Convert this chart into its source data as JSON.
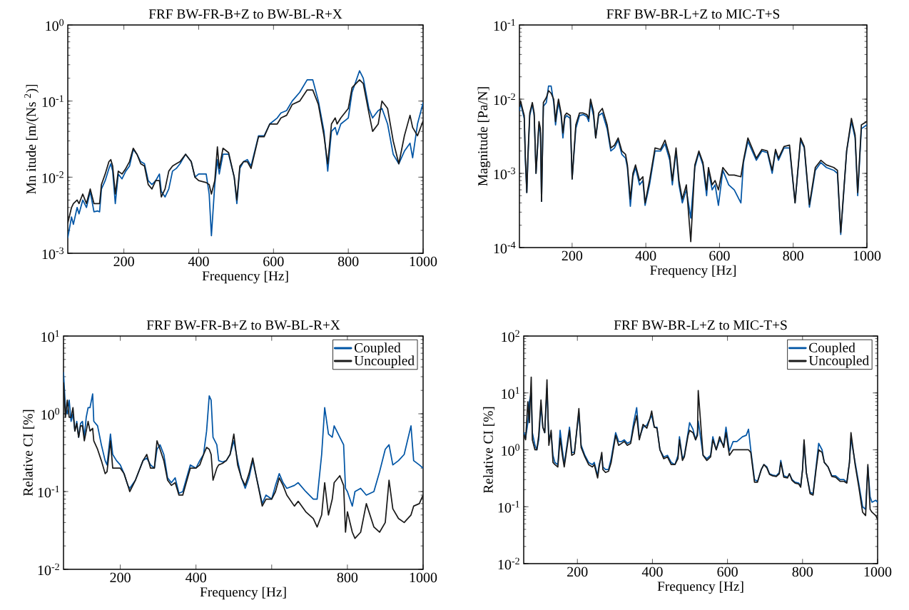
{
  "chart_data": [
    {
      "type": "line",
      "title": "FRF BW-FR-B+Z to BW-BL-R+X",
      "xlabel": "Frequency [Hz]",
      "ylabel": "Mn  itude [m/(Ns $^{2}$)]",
      "log": "y",
      "xlim": [
        50,
        1000
      ],
      "ylim": [
        0.001,
        1
      ],
      "xticks": [
        200,
        400,
        600,
        800,
        1000
      ],
      "yticks": [
        {
          "value": 0.001,
          "label": "10$^{-3}$"
        },
        {
          "value": 0.01,
          "label": "10$^{-2}$"
        },
        {
          "value": 0.1,
          "label": "10$^{-1}$"
        },
        {
          "value": 1,
          "label": "10$^{0}$"
        }
      ],
      "series": [
        {
          "color": "#0055a5",
          "x": [
            50,
            60,
            65,
            75,
            80,
            90,
            100,
            110,
            120,
            130,
            135,
            140,
            150,
            160,
            165,
            170,
            177,
            185,
            195,
            205,
            215,
            225,
            235,
            245,
            255,
            265,
            275,
            285,
            295,
            300,
            310,
            320,
            330,
            340,
            350,
            365,
            380,
            390,
            400,
            420,
            428,
            434,
            443,
            450,
            455,
            465,
            480,
            495,
            502,
            510,
            520,
            530,
            540,
            560,
            575,
            590,
            610,
            620,
            635,
            650,
            670,
            690,
            705,
            720,
            735,
            745,
            755,
            765,
            770,
            780,
            800,
            810,
            830,
            840,
            855,
            865,
            880,
            890,
            905,
            920,
            935,
            950,
            965,
            972,
            985,
            1000
          ],
          "values": [
            0.0016,
            0.003,
            0.0024,
            0.004,
            0.0033,
            0.005,
            0.004,
            0.0065,
            0.0035,
            0.0036,
            0.0035,
            0.007,
            0.009,
            0.013,
            0.015,
            0.012,
            0.0045,
            0.011,
            0.0095,
            0.012,
            0.014,
            0.023,
            0.02,
            0.016,
            0.015,
            0.009,
            0.008,
            0.009,
            0.011,
            0.0065,
            0.0055,
            0.007,
            0.012,
            0.013,
            0.015,
            0.02,
            0.016,
            0.01,
            0.011,
            0.011,
            0.006,
            0.0017,
            0.008,
            0.017,
            0.011,
            0.02,
            0.02,
            0.01,
            0.0045,
            0.013,
            0.016,
            0.017,
            0.014,
            0.035,
            0.035,
            0.05,
            0.06,
            0.07,
            0.075,
            0.1,
            0.13,
            0.19,
            0.19,
            0.1,
            0.04,
            0.012,
            0.04,
            0.045,
            0.036,
            0.05,
            0.06,
            0.13,
            0.25,
            0.2,
            0.08,
            0.06,
            0.075,
            0.08,
            0.05,
            0.02,
            0.015,
            0.022,
            0.028,
            0.018,
            0.05,
            0.095
          ]
        },
        {
          "color": "#1a1a1a",
          "x": [
            50,
            60,
            65,
            75,
            80,
            90,
            100,
            110,
            120,
            130,
            135,
            140,
            150,
            160,
            165,
            170,
            177,
            185,
            195,
            205,
            215,
            225,
            235,
            245,
            255,
            265,
            275,
            285,
            295,
            300,
            310,
            320,
            330,
            340,
            350,
            365,
            380,
            390,
            400,
            420,
            428,
            434,
            443,
            450,
            455,
            465,
            480,
            495,
            502,
            510,
            520,
            530,
            540,
            560,
            575,
            590,
            610,
            620,
            635,
            650,
            670,
            690,
            705,
            720,
            735,
            745,
            755,
            765,
            770,
            780,
            800,
            810,
            830,
            840,
            855,
            865,
            880,
            890,
            905,
            920,
            935,
            950,
            965,
            972,
            985,
            1000
          ],
          "values": [
            0.0025,
            0.004,
            0.0045,
            0.005,
            0.0045,
            0.006,
            0.0045,
            0.007,
            0.0045,
            0.0045,
            0.0045,
            0.008,
            0.011,
            0.016,
            0.017,
            0.014,
            0.006,
            0.012,
            0.011,
            0.013,
            0.016,
            0.024,
            0.02,
            0.015,
            0.014,
            0.008,
            0.007,
            0.009,
            0.009,
            0.0055,
            0.007,
            0.012,
            0.014,
            0.015,
            0.016,
            0.02,
            0.016,
            0.01,
            0.009,
            0.0085,
            0.008,
            0.006,
            0.009,
            0.025,
            0.013,
            0.024,
            0.021,
            0.01,
            0.005,
            0.014,
            0.016,
            0.016,
            0.013,
            0.034,
            0.034,
            0.05,
            0.05,
            0.06,
            0.065,
            0.09,
            0.1,
            0.14,
            0.14,
            0.09,
            0.035,
            0.015,
            0.05,
            0.06,
            0.05,
            0.06,
            0.08,
            0.15,
            0.19,
            0.17,
            0.07,
            0.04,
            0.05,
            0.1,
            0.08,
            0.03,
            0.015,
            0.035,
            0.065,
            0.045,
            0.035,
            0.055
          ]
        }
      ]
    },
    {
      "type": "line",
      "title": "FRF BW-BR-L+Z to MIC-T+S",
      "xlabel": "Frequency [Hz]",
      "ylabel": "Magnitude [Pa/N]",
      "log": "y",
      "xlim": [
        57,
        1000
      ],
      "ylim": [
        0.0001,
        0.1
      ],
      "xticks": [
        200,
        400,
        600,
        800,
        1000
      ],
      "yticks": [
        {
          "value": 0.0001,
          "label": "10$^{-4}$"
        },
        {
          "value": 0.001,
          "label": "10$^{-3}$"
        },
        {
          "value": 0.01,
          "label": "10$^{-2}$"
        },
        {
          "value": 0.1,
          "label": "10$^{-1}$"
        }
      ],
      "series": [
        {
          "color": "#0055a5",
          "x": [
            57,
            60,
            65,
            70,
            73,
            77,
            80,
            85,
            92,
            97,
            102,
            110,
            114,
            117,
            122,
            130,
            136,
            143,
            150,
            155,
            158,
            163,
            170,
            175,
            180,
            185,
            195,
            200,
            210,
            220,
            230,
            240,
            245,
            250,
            258,
            264,
            272,
            282,
            295,
            305,
            315,
            325,
            335,
            345,
            350,
            358,
            365,
            372,
            383,
            392,
            398,
            410,
            425,
            440,
            452,
            465,
            472,
            482,
            490,
            499,
            510,
            522,
            533,
            544,
            555,
            565,
            570,
            580,
            588,
            597,
            609,
            625,
            640,
            658,
            665,
            677,
            700,
            715,
            730,
            743,
            752,
            760,
            775,
            790,
            805,
            820,
            830,
            844,
            860,
            875,
            890,
            910,
            920,
            929,
            945,
            958,
            968,
            975,
            985,
            1000
          ],
          "values": [
            0.007,
            0.009,
            0.007,
            0.0055,
            0.0015,
            0.00055,
            0.0015,
            0.006,
            0.0085,
            0.006,
            0.001,
            0.0045,
            0.0035,
            0.00042,
            0.008,
            0.009,
            0.015,
            0.015,
            0.009,
            0.0045,
            0.006,
            0.009,
            0.006,
            0.003,
            0.0055,
            0.006,
            0.0055,
            0.00084,
            0.004,
            0.006,
            0.0062,
            0.0058,
            0.005,
            0.009,
            0.006,
            0.003,
            0.006,
            0.0065,
            0.004,
            0.002,
            0.0022,
            0.0028,
            0.0018,
            0.0016,
            0.0012,
            0.00036,
            0.0009,
            0.0012,
            0.0007,
            0.0008,
            0.00037,
            0.0007,
            0.002,
            0.002,
            0.0025,
            0.0015,
            0.0007,
            0.002,
            0.0007,
            0.0004,
            0.0006,
            0.00025,
            0.0012,
            0.0019,
            0.0013,
            0.0005,
            0.0011,
            0.0006,
            0.0007,
            0.00037,
            0.0011,
            0.0007,
            0.0006,
            0.0004,
            0.0014,
            0.0027,
            0.0015,
            0.002,
            0.0019,
            0.001,
            0.002,
            0.0015,
            0.0022,
            0.0022,
            0.0004,
            0.0028,
            0.0022,
            0.00035,
            0.0011,
            0.0014,
            0.0012,
            0.0011,
            0.001,
            0.00015,
            0.002,
            0.005,
            0.003,
            0.0005,
            0.004,
            0.0045
          ]
        },
        {
          "color": "#1a1a1a",
          "x": [
            57,
            60,
            65,
            70,
            73,
            77,
            80,
            85,
            92,
            97,
            102,
            110,
            114,
            117,
            122,
            130,
            136,
            143,
            150,
            155,
            158,
            163,
            170,
            175,
            180,
            185,
            195,
            200,
            210,
            220,
            230,
            240,
            245,
            250,
            258,
            264,
            272,
            282,
            295,
            305,
            315,
            325,
            335,
            345,
            350,
            358,
            365,
            372,
            383,
            392,
            398,
            410,
            425,
            440,
            452,
            465,
            472,
            482,
            490,
            499,
            510,
            522,
            533,
            544,
            555,
            565,
            570,
            580,
            588,
            597,
            609,
            625,
            640,
            658,
            665,
            677,
            700,
            715,
            730,
            743,
            752,
            760,
            775,
            790,
            805,
            820,
            830,
            844,
            860,
            875,
            890,
            910,
            920,
            929,
            945,
            958,
            968,
            975,
            985,
            1000
          ],
          "values": [
            0.008,
            0.0095,
            0.0075,
            0.006,
            0.0017,
            0.00055,
            0.0017,
            0.0065,
            0.009,
            0.0065,
            0.001,
            0.005,
            0.004,
            0.00042,
            0.009,
            0.0105,
            0.013,
            0.012,
            0.01,
            0.005,
            0.007,
            0.01,
            0.0065,
            0.0035,
            0.006,
            0.0065,
            0.006,
            0.00084,
            0.0045,
            0.0065,
            0.0065,
            0.0062,
            0.0055,
            0.01,
            0.0068,
            0.003,
            0.0065,
            0.0075,
            0.0045,
            0.0022,
            0.0024,
            0.003,
            0.002,
            0.0018,
            0.0013,
            0.00045,
            0.001,
            0.0013,
            0.0008,
            0.0009,
            0.0004,
            0.0008,
            0.0022,
            0.0021,
            0.0028,
            0.0017,
            0.0008,
            0.0022,
            0.0008,
            0.00045,
            0.0007,
            0.00012,
            0.0013,
            0.002,
            0.0014,
            0.0006,
            0.0012,
            0.0007,
            0.0008,
            0.0006,
            0.0012,
            0.00095,
            0.00095,
            0.0009,
            0.0015,
            0.003,
            0.0016,
            0.0021,
            0.002,
            0.0011,
            0.0021,
            0.0016,
            0.0023,
            0.0024,
            0.0004,
            0.003,
            0.0023,
            0.00038,
            0.0012,
            0.0015,
            0.0013,
            0.0012,
            0.0011,
            0.00016,
            0.002,
            0.0055,
            0.0033,
            0.00055,
            0.0045,
            0.005
          ]
        }
      ]
    },
    {
      "type": "line",
      "title": "FRF BW-FR-B+Z to BW-BL-R+X",
      "xlabel": "Frequency [Hz]",
      "ylabel": "Relative CI [%]",
      "log": "y",
      "legend": "top right",
      "xlim": [
        50,
        1000
      ],
      "ylim": [
        0.01,
        10
      ],
      "xticks": [
        200,
        400,
        {
          "value": 600,
          "label": null
        },
        800,
        1000
      ],
      "yticks": [
        {
          "value": 0.01,
          "label": "10$^{-2}$"
        },
        {
          "value": 0.1,
          "label": "10$^{-1}$"
        },
        {
          "value": 1,
          "label": "10$^{0}$"
        },
        {
          "value": 10,
          "label": "10$^{1}$"
        }
      ],
      "series": [
        {
          "name": "Coupled",
          "color": "#0055a5",
          "x": [
            50,
            55,
            60,
            65,
            70,
            75,
            80,
            85,
            90,
            95,
            100,
            105,
            110,
            115,
            120,
            127,
            130,
            140,
            150,
            160,
            165,
            174,
            180,
            190,
            200,
            210,
            220,
            225,
            240,
            260,
            270,
            280,
            290,
            297,
            305,
            315,
            325,
            335,
            345,
            355,
            365,
            385,
            400,
            410,
            420,
            428,
            435,
            440,
            445,
            455,
            460,
            470,
            480,
            490,
            500,
            510,
            520,
            530,
            540,
            550,
            560,
            575,
            585,
            600,
            610,
            620,
            630,
            640,
            660,
            670,
            690,
            710,
            720,
            732,
            740,
            750,
            760,
            765,
            780,
            790,
            795,
            800,
            813,
            820,
            835,
            850,
            870,
            885,
            900,
            910,
            920,
            935,
            950,
            968,
            975,
            990,
            1000
          ],
          "values": [
            3.4,
            1.2,
            1.0,
            1.5,
            0.8,
            1.0,
            0.6,
            0.8,
            0.5,
            0.75,
            0.8,
            0.5,
            0.9,
            1.2,
            1.2,
            1.8,
            0.8,
            0.7,
            0.4,
            0.25,
            0.22,
            0.55,
            0.3,
            0.25,
            0.22,
            0.17,
            0.12,
            0.11,
            0.14,
            0.25,
            0.27,
            0.22,
            0.2,
            0.35,
            0.4,
            0.3,
            0.15,
            0.13,
            0.15,
            0.095,
            0.1,
            0.22,
            0.2,
            0.25,
            0.3,
            0.6,
            1.7,
            1.5,
            0.5,
            0.4,
            0.25,
            0.24,
            0.25,
            0.3,
            0.45,
            0.25,
            0.15,
            0.11,
            0.15,
            0.25,
            0.15,
            0.07,
            0.09,
            0.08,
            0.12,
            0.17,
            0.13,
            0.11,
            0.12,
            0.13,
            0.1,
            0.08,
            0.08,
            0.3,
            1.2,
            0.55,
            0.5,
            0.7,
            0.5,
            0.4,
            0.11,
            0.1,
            0.065,
            0.1,
            0.11,
            0.09,
            0.1,
            0.18,
            0.35,
            0.4,
            0.22,
            0.25,
            0.3,
            0.7,
            0.25,
            0.22,
            0.2
          ]
        },
        {
          "name": "Uncoupled",
          "color": "#1a1a1a",
          "x": [
            50,
            55,
            60,
            65,
            70,
            75,
            80,
            85,
            90,
            95,
            100,
            105,
            110,
            115,
            120,
            127,
            130,
            140,
            150,
            160,
            165,
            174,
            180,
            190,
            200,
            210,
            220,
            225,
            240,
            260,
            270,
            280,
            290,
            297,
            305,
            315,
            325,
            335,
            345,
            355,
            365,
            385,
            400,
            410,
            420,
            428,
            435,
            440,
            445,
            455,
            460,
            470,
            480,
            490,
            500,
            510,
            520,
            530,
            540,
            550,
            560,
            575,
            585,
            600,
            610,
            620,
            630,
            640,
            660,
            670,
            690,
            710,
            720,
            732,
            740,
            750,
            760,
            765,
            780,
            790,
            795,
            800,
            813,
            820,
            835,
            850,
            870,
            885,
            900,
            910,
            920,
            935,
            950,
            968,
            975,
            990,
            1000
          ],
          "values": [
            2.5,
            0.9,
            1.5,
            0.9,
            0.9,
            1.2,
            0.6,
            0.75,
            0.5,
            0.7,
            0.7,
            0.45,
            0.6,
            0.8,
            0.6,
            0.65,
            0.45,
            0.35,
            0.25,
            0.17,
            0.18,
            0.45,
            0.2,
            0.2,
            0.2,
            0.17,
            0.12,
            0.1,
            0.14,
            0.25,
            0.3,
            0.2,
            0.2,
            0.45,
            0.35,
            0.25,
            0.14,
            0.12,
            0.13,
            0.09,
            0.09,
            0.2,
            0.2,
            0.22,
            0.3,
            0.37,
            0.35,
            0.3,
            0.14,
            0.2,
            0.22,
            0.23,
            0.25,
            0.3,
            0.55,
            0.22,
            0.15,
            0.12,
            0.17,
            0.27,
            0.15,
            0.065,
            0.08,
            0.08,
            0.1,
            0.15,
            0.12,
            0.09,
            0.065,
            0.075,
            0.055,
            0.045,
            0.035,
            0.05,
            0.13,
            0.05,
            0.08,
            0.13,
            0.16,
            0.12,
            0.03,
            0.055,
            0.03,
            0.025,
            0.03,
            0.07,
            0.035,
            0.03,
            0.04,
            0.14,
            0.06,
            0.045,
            0.04,
            0.05,
            0.065,
            0.07,
            0.09
          ]
        }
      ]
    },
    {
      "type": "line",
      "title": "FRF BW-BR-L+Z to MIC-T+S",
      "xlabel": "Frequency [Hz]",
      "ylabel": "Relative CI [%]",
      "log": "y",
      "legend": "top right",
      "xlim": [
        57,
        1000
      ],
      "ylim": [
        0.01,
        100
      ],
      "xticks": [
        200,
        400,
        600,
        800,
        1000
      ],
      "yticks": [
        {
          "value": 0.01,
          "label": "10$^{-2}$"
        },
        {
          "value": 0.1,
          "label": "10$^{-1}$"
        },
        {
          "value": 1,
          "label": "10$^{0}$"
        },
        {
          "value": 10,
          "label": "10$^{1}$"
        },
        {
          "value": 100,
          "label": "10$^{2}$"
        }
      ],
      "series": [
        {
          "name": "Coupled",
          "color": "#0055a5",
          "x": [
            58,
            62,
            68,
            72,
            77,
            80,
            87,
            92,
            97,
            103,
            108,
            113,
            119,
            124,
            130,
            135,
            140,
            148,
            154,
            160,
            165,
            179,
            185,
            192,
            204,
            210,
            220,
            230,
            240,
            245,
            254,
            258,
            265,
            268,
            275,
            283,
            290,
            302,
            310,
            318,
            325,
            333,
            342,
            350,
            358,
            365,
            375,
            385,
            393,
            398,
            405,
            412,
            420,
            430,
            440,
            450,
            460,
            468,
            472,
            480,
            485,
            495,
            499,
            508,
            515,
            520,
            522,
            535,
            545,
            555,
            561,
            570,
            579,
            590,
            596,
            605,
            615,
            625,
            640,
            650,
            656,
            662,
            672,
            680,
            690,
            697,
            705,
            712,
            720,
            730,
            738,
            742,
            750,
            760,
            765,
            772,
            780,
            790,
            795,
            800,
            804,
            810,
            820,
            828,
            836,
            843,
            852,
            858,
            868,
            878,
            888,
            900,
            910,
            918,
            925,
            929,
            940,
            950,
            960,
            968,
            974,
            980,
            985,
            995,
            1000
          ],
          "values": [
            2,
            1.6,
            3,
            7,
            10,
            2,
            1.2,
            1.0,
            1.5,
            6,
            2.5,
            2,
            12,
            1.5,
            2.0,
            0.8,
            0.6,
            0.55,
            2.2,
            1.0,
            0.55,
            2.5,
            0.9,
            0.9,
            4.5,
            1.2,
            0.8,
            0.6,
            0.55,
            0.6,
            0.35,
            0.55,
            0.8,
            0.5,
            0.45,
            0.45,
            0.7,
            2.0,
            1.4,
            1.4,
            1.5,
            1.3,
            1.4,
            3,
            5.5,
            1.6,
            2.5,
            2.7,
            3.5,
            4,
            2.5,
            2.5,
            1.0,
            0.75,
            0.8,
            0.6,
            0.55,
            0.8,
            1.7,
            0.7,
            0.8,
            2,
            3,
            2.3,
            1.5,
            2,
            3.2,
            0.8,
            0.7,
            0.8,
            1.7,
            1.0,
            1.5,
            1.2,
            2.5,
            0.95,
            1.4,
            1.4,
            1.7,
            1.8,
            2.3,
            1.0,
            0.3,
            0.28,
            0.45,
            0.55,
            0.5,
            0.38,
            0.36,
            0.35,
            0.4,
            0.65,
            0.35,
            0.33,
            0.38,
            0.3,
            0.27,
            0.26,
            0.23,
            0.45,
            1.4,
            0.4,
            0.18,
            0.17,
            0.5,
            1.3,
            1.0,
            0.6,
            0.5,
            0.35,
            0.35,
            0.3,
            0.3,
            0.27,
            0.6,
            1.6,
            0.6,
            0.25,
            0.1,
            0.09,
            0.5,
            0.15,
            0.12,
            0.13,
            0.12
          ]
        },
        {
          "name": "Uncoupled",
          "color": "#1a1a1a",
          "x": [
            58,
            62,
            68,
            72,
            77,
            80,
            87,
            92,
            97,
            103,
            108,
            113,
            119,
            124,
            130,
            135,
            140,
            148,
            154,
            160,
            165,
            179,
            185,
            192,
            204,
            210,
            220,
            230,
            240,
            245,
            254,
            258,
            265,
            268,
            275,
            283,
            290,
            302,
            310,
            318,
            325,
            333,
            342,
            350,
            358,
            365,
            375,
            385,
            393,
            398,
            405,
            412,
            420,
            430,
            440,
            450,
            460,
            468,
            472,
            480,
            485,
            495,
            499,
            508,
            515,
            520,
            522,
            535,
            545,
            555,
            561,
            570,
            579,
            590,
            596,
            605,
            615,
            625,
            640,
            650,
            656,
            662,
            672,
            680,
            690,
            697,
            705,
            712,
            720,
            730,
            738,
            742,
            750,
            760,
            765,
            772,
            780,
            790,
            795,
            800,
            804,
            810,
            820,
            828,
            836,
            843,
            852,
            858,
            868,
            878,
            888,
            900,
            910,
            918,
            925,
            929,
            940,
            950,
            960,
            968,
            974,
            980,
            985,
            995,
            1000
          ],
          "values": [
            1.8,
            1.5,
            7,
            3,
            19,
            1.5,
            1.0,
            1.0,
            1.8,
            7.5,
            2.5,
            2.0,
            17,
            1.2,
            2.2,
            0.6,
            0.55,
            0.5,
            1.6,
            0.8,
            0.5,
            2.2,
            0.8,
            0.85,
            5.3,
            1.1,
            0.75,
            0.55,
            0.5,
            0.55,
            0.32,
            0.5,
            0.9,
            0.45,
            0.4,
            0.42,
            0.6,
            1.8,
            1.2,
            1.3,
            1.4,
            1.2,
            1.3,
            2.5,
            4,
            1.5,
            2.8,
            2.4,
            3.5,
            4.8,
            2.5,
            2.4,
            1.0,
            0.7,
            0.75,
            0.55,
            0.55,
            0.7,
            1.5,
            0.65,
            0.75,
            1.8,
            2.2,
            2.0,
            1.5,
            1.8,
            11,
            0.8,
            0.65,
            0.75,
            1.5,
            1.0,
            1.7,
            1.1,
            2.0,
            0.8,
            1.0,
            1.0,
            1.0,
            1.0,
            1.0,
            0.9,
            0.27,
            0.27,
            0.45,
            0.55,
            0.48,
            0.37,
            0.35,
            0.34,
            0.38,
            0.6,
            0.33,
            0.32,
            0.38,
            0.29,
            0.26,
            0.25,
            0.22,
            0.45,
            1.5,
            0.4,
            0.17,
            0.16,
            0.45,
            1.0,
            0.9,
            0.6,
            0.5,
            0.34,
            0.33,
            0.28,
            0.28,
            0.26,
            0.6,
            2.0,
            0.55,
            0.22,
            0.08,
            0.07,
            0.55,
            0.09,
            0.08,
            0.07,
            0.06
          ]
        }
      ]
    }
  ]
}
